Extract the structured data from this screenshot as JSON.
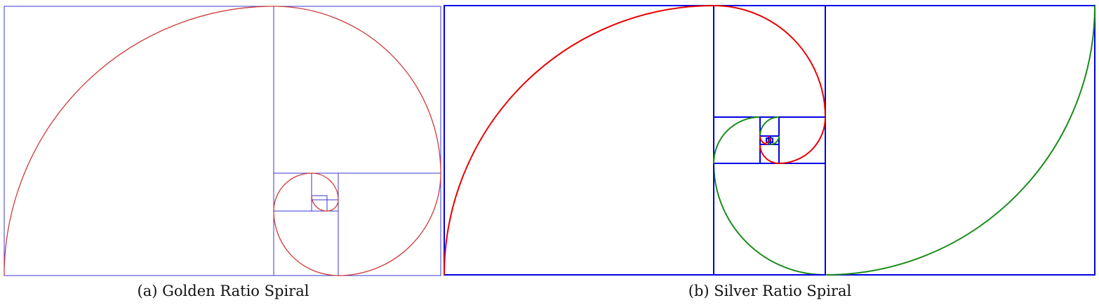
{
  "figures": [
    {
      "id": "a",
      "caption": "(a) Golden Ratio Spiral",
      "ratio_name": "golden",
      "ratio": 1.618,
      "square_color": "#3a3ad0",
      "arc_colors": [
        "#d03a3a"
      ],
      "square_count": 14
    },
    {
      "id": "b",
      "caption": "(b) Silver Ratio Spiral",
      "ratio_name": "silver",
      "ratio": 2.414,
      "square_color": "#0000e6",
      "arc_colors": [
        "#e60000",
        "#1a8c1a"
      ],
      "square_count": 12
    }
  ]
}
